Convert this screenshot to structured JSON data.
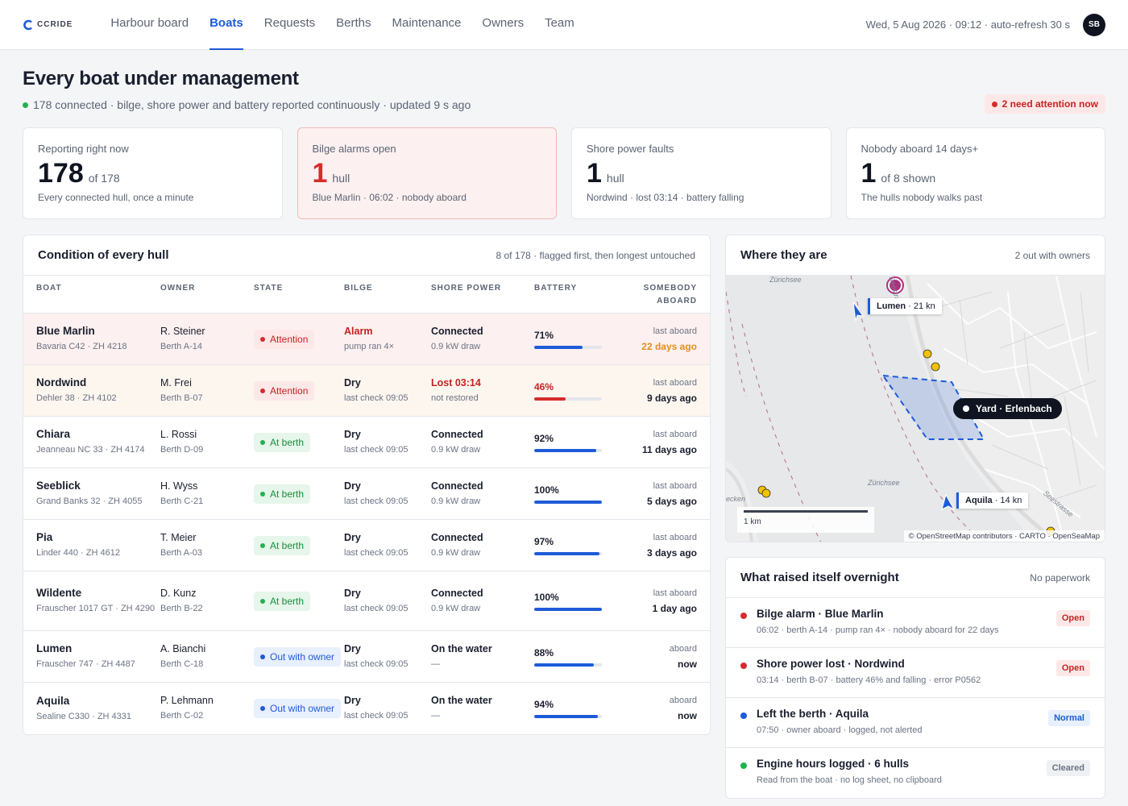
{
  "app": {
    "logo_text": "CCRIDE"
  },
  "nav": {
    "items": [
      "Harbour board",
      "Boats",
      "Requests",
      "Berths",
      "Maintenance",
      "Owners",
      "Team"
    ],
    "active": "Boats"
  },
  "header": {
    "clock": "Wed, 5 Aug 2026 · 09:12 · auto-refresh 30 s",
    "avatar_initials": "SB"
  },
  "page": {
    "title": "Every boat under management",
    "subtitle": "178 connected · bilge, shore power and battery reported continuously · updated 9 s ago",
    "attention_pill": "2 need attention now"
  },
  "stats": [
    {
      "label": "Reporting right now",
      "value": "178",
      "unit": "of 178",
      "note": "Every connected hull, once a minute"
    },
    {
      "label": "Bilge alarms open",
      "value": "1",
      "unit": "hull",
      "note": "Blue Marlin · 06:02 · nobody aboard"
    },
    {
      "label": "Shore power faults",
      "value": "1",
      "unit": "hull",
      "note": "Nordwind · lost 03:14 · battery falling"
    },
    {
      "label": "Nobody aboard 14 days+",
      "value": "1",
      "unit": "of 8 shown",
      "note": "The hulls nobody walks past"
    }
  ],
  "hulls": {
    "title": "Condition of every hull",
    "meta": "8 of 178 · flagged first, then longest untouched",
    "columns": [
      "Boat",
      "Owner",
      "State",
      "Bilge",
      "Shore power",
      "Battery",
      "Somebody",
      "aboard"
    ],
    "rows": [
      {
        "name": "Blue Marlin",
        "model": "Bavaria C42 · ZH 4218",
        "owner": "R. Steiner",
        "berth": "Berth A-14",
        "state": "Attention",
        "bilge": "Alarm",
        "bilge_sub": "pump ran 4×",
        "shore": "Connected",
        "shore_sub": "0.9 kW draw",
        "battery": 71,
        "battery_label": "71%",
        "aboard_lbl": "last aboard",
        "aboard_val": "22 days ago"
      },
      {
        "name": "Nordwind",
        "model": "Dehler 38 · ZH 4102",
        "owner": "M. Frei",
        "berth": "Berth B-07",
        "state": "Attention",
        "bilge": "Dry",
        "bilge_sub": "last check 09:05",
        "shore": "Lost 03:14",
        "shore_sub": "not restored",
        "battery": 46,
        "battery_label": "46%",
        "aboard_lbl": "last aboard",
        "aboard_val": "9 days ago"
      },
      {
        "name": "Chiara",
        "model": "Jeanneau NC 33 · ZH 4174",
        "owner": "L. Rossi",
        "berth": "Berth D-09",
        "state": "At berth",
        "bilge": "Dry",
        "bilge_sub": "last check 09:05",
        "shore": "Connected",
        "shore_sub": "0.9 kW draw",
        "battery": 92,
        "battery_label": "92%",
        "aboard_lbl": "last aboard",
        "aboard_val": "11 days ago"
      },
      {
        "name": "Seeblick",
        "model": "Grand Banks 32 · ZH 4055",
        "owner": "H. Wyss",
        "berth": "Berth C-21",
        "state": "At berth",
        "bilge": "Dry",
        "bilge_sub": "last check 09:05",
        "shore": "Connected",
        "shore_sub": "0.9 kW draw",
        "battery": 100,
        "battery_label": "100%",
        "aboard_lbl": "last aboard",
        "aboard_val": "5 days ago"
      },
      {
        "name": "Pia",
        "model": "Linder 440 · ZH 4612",
        "owner": "T. Meier",
        "berth": "Berth A-03",
        "state": "At berth",
        "bilge": "Dry",
        "bilge_sub": "last check 09:05",
        "shore": "Connected",
        "shore_sub": "0.9 kW draw",
        "battery": 97,
        "battery_label": "97%",
        "aboard_lbl": "last aboard",
        "aboard_val": "3 days ago"
      },
      {
        "name": "Wildente",
        "model": "Frauscher 1017 GT · ZH 4290",
        "owner": "D. Kunz",
        "berth": "Berth B-22",
        "state": "At berth",
        "bilge": "Dry",
        "bilge_sub": "last check 09:05",
        "shore": "Connected",
        "shore_sub": "0.9 kW draw",
        "battery": 100,
        "battery_label": "100%",
        "aboard_lbl": "last aboard",
        "aboard_val": "1 day ago"
      },
      {
        "name": "Lumen",
        "model": "Frauscher 747 · ZH 4487",
        "owner": "A. Bianchi",
        "berth": "Berth C-18",
        "state": "Out with owner",
        "bilge": "Dry",
        "bilge_sub": "last check 09:05",
        "shore": "On the water",
        "shore_sub": "—",
        "battery": 88,
        "battery_label": "88%",
        "aboard_lbl": "aboard",
        "aboard_val": "now"
      },
      {
        "name": "Aquila",
        "model": "Sealine C330 · ZH 4331",
        "owner": "P. Lehmann",
        "berth": "Berth C-02",
        "state": "Out with owner",
        "bilge": "Dry",
        "bilge_sub": "last check 09:05",
        "shore": "On the water",
        "shore_sub": "—",
        "battery": 94,
        "battery_label": "94%",
        "aboard_lbl": "aboard",
        "aboard_val": "now"
      }
    ]
  },
  "map": {
    "title": "Where they are",
    "meta": "2 out with owners",
    "place_1": "Zürichsee",
    "place_2": "Zürichsee",
    "street_1": "Seestrasse",
    "street_2": "Seestrasse",
    "edge_label": "ecken",
    "boat_1_name": "Lumen",
    "boat_1_speed": " · 21 kn",
    "boat_2_name": "Aquila",
    "boat_2_speed": " · 14 kn",
    "yard_label": "Yard · Erlenbach",
    "scale_label": "1 km",
    "attribution": "© OpenStreetMap contributors · CARTO · OpenSeaMap"
  },
  "overnight": {
    "title": "What raised itself overnight",
    "meta": "No paperwork",
    "events": [
      {
        "title": "Bilge alarm · Blue Marlin",
        "sub": "06:02 · berth A-14 · pump ran 4× · nobody aboard for 22 days",
        "tag": "Open",
        "color": "#d62c2c"
      },
      {
        "title": "Shore power lost · Nordwind",
        "sub": "03:14 · berth B-07 · battery 46% and falling · error P0562",
        "tag": "Open",
        "color": "#d62c2c"
      },
      {
        "title": "Left the berth · Aquila",
        "sub": "07:50 · owner aboard · logged, not alerted",
        "tag": "Normal",
        "color": "#1e5bd8"
      },
      {
        "title": "Engine hours logged · 6 hulls",
        "sub": "Read from the boat · no log sheet, no clipboard",
        "tag": "Cleared",
        "color": "#22b24c"
      }
    ]
  }
}
